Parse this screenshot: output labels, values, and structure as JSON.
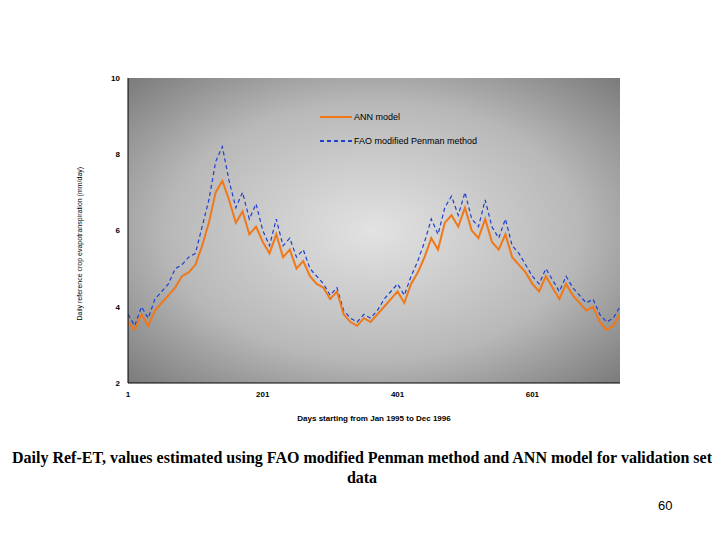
{
  "chart_data": {
    "type": "line",
    "title": "Daily Ref-ET, values estimated using FAO modified Penman method and ANN model for validation set data",
    "page_number": "60",
    "x_label": "Days starting from Jan 1995 to Dec 1996",
    "y_label": "Daily reference crop evapotranspiration (mm/day)",
    "x": [
      1,
      11,
      21,
      31,
      41,
      51,
      61,
      71,
      81,
      91,
      101,
      111,
      121,
      131,
      141,
      151,
      161,
      171,
      181,
      191,
      201,
      211,
      221,
      231,
      241,
      251,
      261,
      271,
      281,
      291,
      301,
      311,
      321,
      331,
      341,
      351,
      361,
      371,
      381,
      391,
      401,
      411,
      421,
      431,
      441,
      451,
      461,
      471,
      481,
      491,
      501,
      511,
      521,
      531,
      541,
      551,
      561,
      571,
      581,
      591,
      601,
      611,
      621,
      631,
      641,
      651,
      661,
      671,
      681,
      691,
      701,
      711,
      721,
      731
    ],
    "series": [
      {
        "name": "ANN model",
        "color": "#f07818",
        "line_style": "solid",
        "values": [
          3.6,
          3.4,
          3.8,
          3.5,
          3.9,
          4.1,
          4.3,
          4.5,
          4.8,
          4.9,
          5.1,
          5.6,
          6.2,
          7.0,
          7.3,
          6.8,
          6.2,
          6.5,
          5.9,
          6.1,
          5.7,
          5.4,
          5.9,
          5.3,
          5.5,
          5.0,
          5.2,
          4.8,
          4.6,
          4.5,
          4.2,
          4.4,
          3.8,
          3.6,
          3.5,
          3.7,
          3.6,
          3.8,
          4.0,
          4.2,
          4.4,
          4.1,
          4.6,
          4.9,
          5.3,
          5.8,
          5.5,
          6.2,
          6.4,
          6.1,
          6.6,
          6.0,
          5.8,
          6.3,
          5.7,
          5.5,
          5.9,
          5.3,
          5.1,
          4.9,
          4.6,
          4.4,
          4.8,
          4.5,
          4.2,
          4.6,
          4.3,
          4.1,
          3.9,
          4.0,
          3.6,
          3.4,
          3.5,
          3.8
        ]
      },
      {
        "name": "FAO modified Penman method",
        "color": "#1f3fd0",
        "line_style": "dashed",
        "values": [
          3.8,
          3.5,
          4.0,
          3.7,
          4.2,
          4.4,
          4.6,
          5.0,
          5.1,
          5.3,
          5.4,
          6.1,
          6.8,
          7.8,
          8.2,
          7.3,
          6.6,
          7.0,
          6.3,
          6.7,
          6.0,
          5.6,
          6.3,
          5.6,
          5.8,
          5.3,
          5.5,
          5.0,
          4.8,
          4.6,
          4.3,
          4.5,
          3.9,
          3.7,
          3.6,
          3.8,
          3.7,
          3.9,
          4.2,
          4.4,
          4.6,
          4.3,
          4.8,
          5.2,
          5.7,
          6.3,
          5.9,
          6.6,
          6.9,
          6.4,
          7.0,
          6.3,
          6.1,
          6.8,
          6.1,
          5.8,
          6.3,
          5.6,
          5.4,
          5.1,
          4.8,
          4.6,
          5.0,
          4.7,
          4.4,
          4.8,
          4.5,
          4.3,
          4.1,
          4.2,
          3.8,
          3.6,
          3.7,
          4.0
        ]
      }
    ],
    "xlim": [
      1,
      731
    ],
    "xticks": [
      1,
      201,
      401,
      601
    ],
    "ylim": [
      2,
      10
    ],
    "yticks": [
      2,
      4,
      6,
      8,
      10
    ],
    "grid": false,
    "legend": "top"
  }
}
